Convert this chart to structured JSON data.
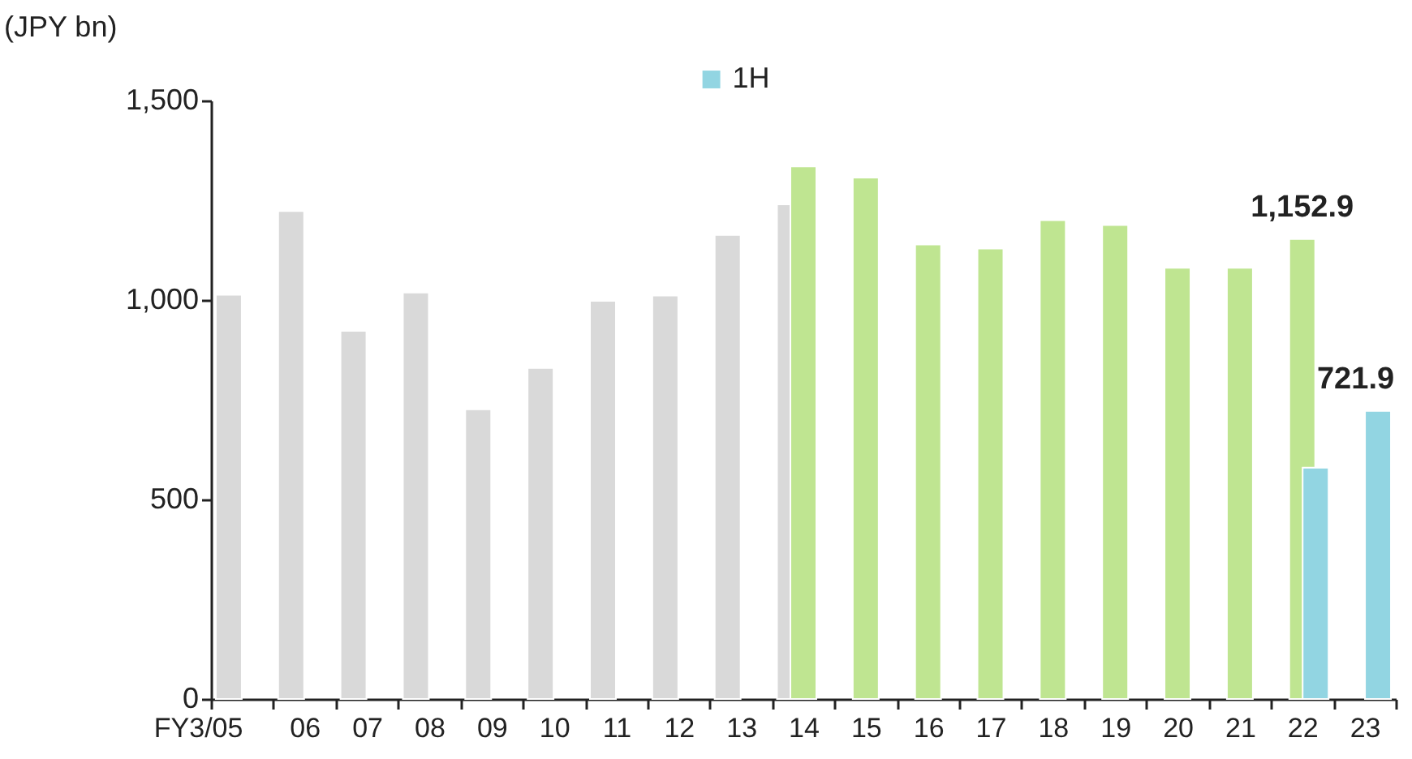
{
  "chart_data": {
    "type": "bar",
    "ylabel": "(JPY bn)",
    "categories": [
      "FY3/05",
      "06",
      "07",
      "08",
      "09",
      "10",
      "11",
      "12",
      "13",
      "14",
      "15",
      "16",
      "17",
      "18",
      "19",
      "20",
      "21",
      "22",
      "23"
    ],
    "series": [
      {
        "color": "#d9d9d9",
        "values": [
          1013,
          1223,
          923,
          1019,
          726,
          830,
          998,
          1011,
          1163,
          1240,
          null,
          null,
          null,
          null,
          null,
          null,
          null,
          null,
          null
        ]
      },
      {
        "color": "#bfe591",
        "values": [
          null,
          null,
          null,
          null,
          null,
          null,
          null,
          null,
          null,
          1335,
          1307,
          1139,
          1129,
          1200,
          1188,
          1081,
          1081,
          1152.9,
          null
        ],
        "value_labels": [
          null,
          null,
          null,
          null,
          null,
          null,
          null,
          null,
          null,
          null,
          null,
          null,
          null,
          null,
          null,
          null,
          null,
          "1,152.9",
          null
        ]
      },
      {
        "name": "1H",
        "color": "#92d5e2",
        "values": [
          null,
          null,
          null,
          null,
          null,
          null,
          null,
          null,
          null,
          null,
          null,
          null,
          null,
          null,
          null,
          null,
          null,
          580,
          721.9
        ],
        "value_labels": [
          null,
          null,
          null,
          null,
          null,
          null,
          null,
          null,
          null,
          null,
          null,
          null,
          null,
          null,
          null,
          null,
          null,
          null,
          "721.9"
        ]
      }
    ],
    "ylim": [
      0,
      1500
    ],
    "yticks": [
      0,
      {
        "value": 500,
        "label": "500"
      },
      {
        "value": 1000,
        "label": "1,000"
      },
      {
        "value": 1500,
        "label": "1,500"
      }
    ],
    "legend": "top"
  }
}
